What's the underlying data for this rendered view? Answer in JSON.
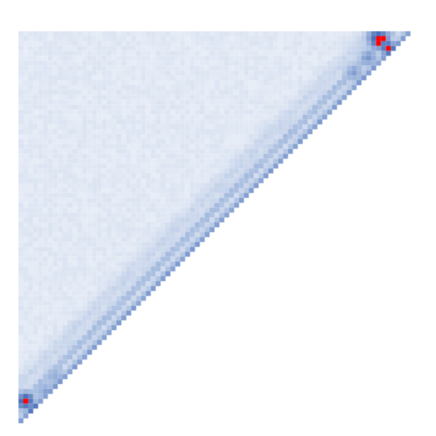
{
  "chart_data": {
    "type": "heatmap",
    "shape": "upper-left triangle",
    "n_bins": 80,
    "colorscale": {
      "background": "#ffffff",
      "low": "#eef2f9",
      "mid": "#9fb6dc",
      "high": "#4a6eb8",
      "saturated": "#ff0000"
    },
    "background_level": 0.08,
    "diagonal_bands": [
      {
        "offset": 0,
        "width": 1.2,
        "level": 0.55
      },
      {
        "offset": 3.5,
        "width": 1.3,
        "level": 0.38
      },
      {
        "offset": 7.5,
        "width": 2.5,
        "level": 0.16
      }
    ],
    "hotspots": [
      {
        "row": 1,
        "col": 73,
        "level": 1.0,
        "radius": 2.6
      },
      {
        "row": 3,
        "col": 75,
        "level": 1.0,
        "radius": 1.8
      },
      {
        "row": 5,
        "col": 71,
        "level": 0.6,
        "radius": 2.5
      },
      {
        "row": 8,
        "col": 68,
        "level": 0.55,
        "radius": 2.5
      },
      {
        "row": 75,
        "col": 1,
        "level": 1.0,
        "radius": 2.2
      },
      {
        "row": 77,
        "col": 3,
        "level": 1.0,
        "radius": 1.8
      },
      {
        "row": 73,
        "col": 5,
        "level": 0.55,
        "radius": 2.5
      },
      {
        "row": 70,
        "col": 7,
        "level": 0.5,
        "radius": 2.5
      }
    ],
    "xlabel": "",
    "ylabel": "",
    "title": "",
    "grid": false,
    "legend": "none"
  }
}
